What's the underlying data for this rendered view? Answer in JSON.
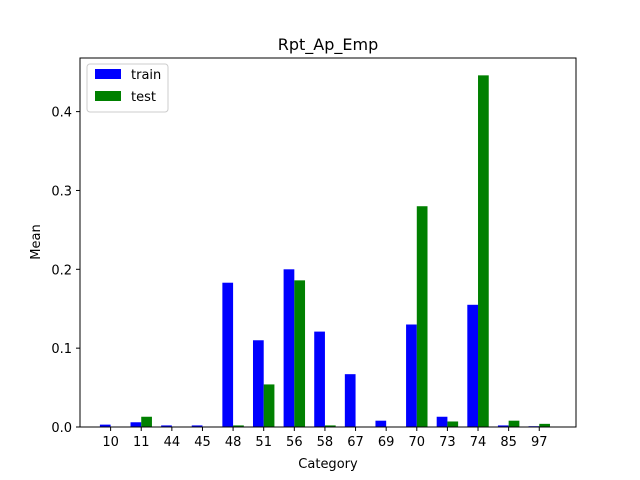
{
  "chart_data": {
    "type": "bar",
    "title": "Rpt_Ap_Emp",
    "xlabel": "Category",
    "ylabel": "Mean",
    "categories": [
      "10",
      "11",
      "44",
      "45",
      "48",
      "51",
      "56",
      "58",
      "67",
      "69",
      "70",
      "73",
      "74",
      "85",
      "97"
    ],
    "series": [
      {
        "name": "train",
        "color": "#0000ff",
        "values": [
          0.003,
          0.006,
          0.002,
          0.002,
          0.183,
          0.11,
          0.2,
          0.121,
          0.067,
          0.008,
          0.13,
          0.013,
          0.155,
          0.002,
          0.001
        ]
      },
      {
        "name": "test",
        "color": "#008000",
        "values": [
          0.0,
          0.013,
          0.0,
          0.0,
          0.002,
          0.054,
          0.186,
          0.002,
          0.0,
          0.0,
          0.28,
          0.007,
          0.446,
          0.008,
          0.004
        ]
      }
    ],
    "ylim": [
      0,
      0.468
    ],
    "yticks": [
      0.0,
      0.1,
      0.2,
      0.3,
      0.4
    ],
    "ytick_labels": [
      "0.0",
      "0.1",
      "0.2",
      "0.3",
      "0.4"
    ],
    "grid": false,
    "legend_position": "top-left"
  }
}
